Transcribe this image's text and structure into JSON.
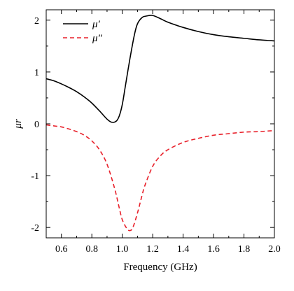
{
  "chart_data": {
    "type": "line",
    "xlabel": "Frequency (GHz)",
    "ylabel": "μr",
    "xlim": [
      0.5,
      2.0
    ],
    "ylim": [
      -2.2,
      2.2
    ],
    "xticks": [
      0.6,
      0.8,
      1.0,
      1.2,
      1.4,
      1.6,
      1.8,
      2.0
    ],
    "xtick_labels": [
      "0.6",
      "0.8",
      "1.0",
      "1.2",
      "1.4",
      "1.6",
      "1.8",
      "2.0"
    ],
    "yticks": [
      -2,
      -1,
      0,
      1,
      2
    ],
    "ytick_labels": [
      "-2",
      "-1",
      "0",
      "1",
      "2"
    ],
    "grid": false,
    "legend": {
      "position": "top-left"
    },
    "series": [
      {
        "name": "μ′",
        "color": "#000000",
        "dash": "solid",
        "x": [
          0.5,
          0.55,
          0.6,
          0.65,
          0.7,
          0.75,
          0.8,
          0.85,
          0.9,
          0.93,
          0.96,
          0.98,
          1.0,
          1.02,
          1.05,
          1.08,
          1.1,
          1.13,
          1.16,
          1.2,
          1.25,
          1.3,
          1.4,
          1.5,
          1.6,
          1.7,
          1.8,
          1.9,
          2.0
        ],
        "y": [
          0.87,
          0.83,
          0.77,
          0.7,
          0.62,
          0.52,
          0.4,
          0.25,
          0.09,
          0.03,
          0.05,
          0.15,
          0.37,
          0.72,
          1.25,
          1.72,
          1.93,
          2.05,
          2.08,
          2.09,
          2.03,
          1.96,
          1.86,
          1.78,
          1.72,
          1.68,
          1.65,
          1.62,
          1.6
        ]
      },
      {
        "name": "μ″",
        "color": "#e8202a",
        "dash": "dashed",
        "x": [
          0.5,
          0.55,
          0.6,
          0.65,
          0.7,
          0.75,
          0.8,
          0.85,
          0.9,
          0.95,
          0.98,
          1.0,
          1.03,
          1.05,
          1.07,
          1.1,
          1.13,
          1.15,
          1.2,
          1.25,
          1.3,
          1.4,
          1.5,
          1.6,
          1.7,
          1.8,
          1.9,
          2.0
        ],
        "y": [
          -0.02,
          -0.04,
          -0.06,
          -0.1,
          -0.15,
          -0.22,
          -0.33,
          -0.5,
          -0.78,
          -1.25,
          -1.62,
          -1.85,
          -2.02,
          -2.06,
          -2.0,
          -1.72,
          -1.38,
          -1.18,
          -0.82,
          -0.62,
          -0.5,
          -0.36,
          -0.28,
          -0.22,
          -0.19,
          -0.16,
          -0.15,
          -0.13
        ]
      }
    ]
  }
}
